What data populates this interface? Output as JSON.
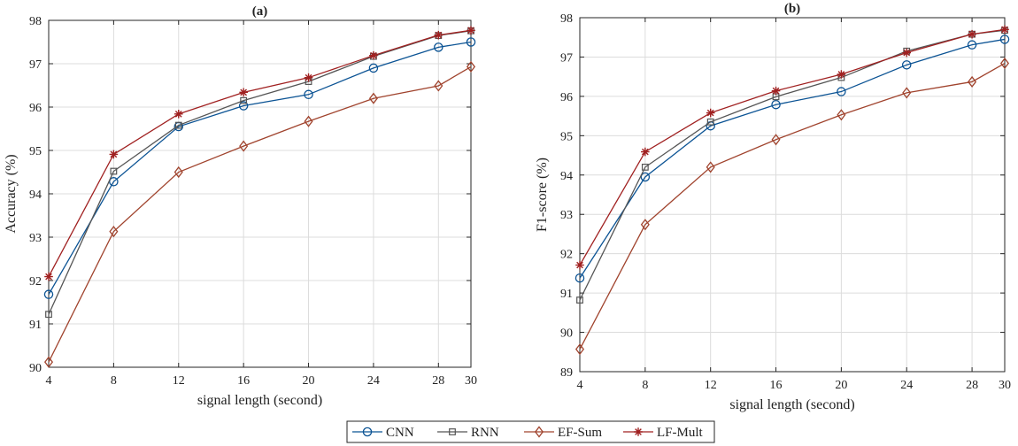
{
  "chart_data": [
    {
      "type": "line",
      "title": "(a)",
      "xlabel": "signal length (second)",
      "ylabel": "Accuracy (%)",
      "x": [
        4,
        8,
        12,
        16,
        20,
        24,
        28,
        30
      ],
      "xticks": [
        "4",
        "8",
        "12",
        "16",
        "20",
        "24",
        "28",
        "30"
      ],
      "xlim": [
        4,
        30
      ],
      "ylim": [
        90,
        98
      ],
      "yticks": [
        "90",
        "91",
        "92",
        "93",
        "94",
        "95",
        "96",
        "97",
        "98"
      ],
      "grid": true,
      "series": [
        {
          "name": "CNN",
          "color": "#0b5394",
          "marker": "circle",
          "values": [
            91.68,
            94.28,
            95.55,
            96.03,
            96.29,
            96.9,
            97.38,
            97.5
          ]
        },
        {
          "name": "RNN",
          "color": "#555555",
          "marker": "square",
          "values": [
            91.22,
            94.52,
            95.58,
            96.15,
            96.59,
            97.17,
            97.65,
            97.76
          ]
        },
        {
          "name": "EF-Sum",
          "color": "#a0432d",
          "marker": "diamond",
          "values": [
            90.12,
            93.13,
            94.5,
            95.1,
            95.67,
            96.2,
            96.49,
            96.93
          ]
        },
        {
          "name": "LF-Mult",
          "color": "#a02020",
          "marker": "star",
          "values": [
            92.09,
            94.91,
            95.84,
            96.34,
            96.68,
            97.19,
            97.66,
            97.77
          ]
        }
      ]
    },
    {
      "type": "line",
      "title": "(b)",
      "xlabel": "signal length (second)",
      "ylabel": "F1-score (%)",
      "x": [
        4,
        8,
        12,
        16,
        20,
        24,
        28,
        30
      ],
      "xticks": [
        "4",
        "8",
        "12",
        "16",
        "20",
        "24",
        "28",
        "30"
      ],
      "xlim": [
        4,
        30
      ],
      "ylim": [
        89,
        98
      ],
      "yticks": [
        "89",
        "90",
        "91",
        "92",
        "93",
        "94",
        "95",
        "96",
        "97",
        "98"
      ],
      "grid": true,
      "series": [
        {
          "name": "CNN",
          "color": "#0b5394",
          "marker": "circle",
          "values": [
            91.38,
            93.95,
            95.25,
            95.79,
            96.12,
            96.8,
            97.31,
            97.45
          ]
        },
        {
          "name": "RNN",
          "color": "#555555",
          "marker": "square",
          "values": [
            90.82,
            94.2,
            95.35,
            95.99,
            96.48,
            97.15,
            97.58,
            97.68
          ]
        },
        {
          "name": "EF-Sum",
          "color": "#a0432d",
          "marker": "diamond",
          "values": [
            89.57,
            92.74,
            94.2,
            94.9,
            95.53,
            96.09,
            96.37,
            96.84
          ]
        },
        {
          "name": "LF-Mult",
          "color": "#a02020",
          "marker": "star",
          "values": [
            91.71,
            94.59,
            95.58,
            96.14,
            96.56,
            97.11,
            97.58,
            97.7
          ]
        }
      ]
    }
  ],
  "legend": {
    "placement": "bottom-center",
    "entries": [
      "CNN",
      "RNN",
      "EF-Sum",
      "LF-Mult"
    ]
  }
}
